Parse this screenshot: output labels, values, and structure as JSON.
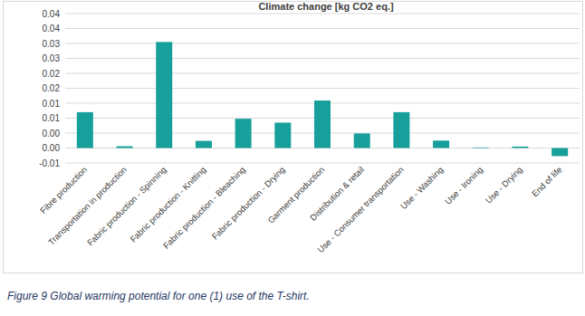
{
  "chart_data": {
    "type": "bar",
    "title": "Climate change [kg CO2 eq.]",
    "caption": "Figure 9 Global warming potential for one (1) use of the T-shirt.",
    "categories": [
      "Fibre production",
      "Transportation in production",
      "Fabric production - Spinning",
      "Fabric production - Knitting",
      "Fabric production - Bleaching",
      "Fabric production - Drying",
      "Garment production",
      "Distribution & retail",
      "Use - Consumer transportation",
      "Use - Washing",
      "Use - Ironing",
      "Use - Drying",
      "End of life"
    ],
    "values": [
      0.012,
      0.0006,
      0.0355,
      0.0024,
      0.0098,
      0.0085,
      0.0159,
      0.0049,
      0.012,
      0.0025,
      0.0002,
      0.0005,
      -0.0027
    ],
    "color": "#17a09b",
    "ylim": [
      -0.005,
      0.045
    ],
    "yticks": [
      {
        "value": -0.005,
        "label": "-0.01"
      },
      {
        "value": 0,
        "label": "0.00"
      },
      {
        "value": 0.005,
        "label": "0.00"
      },
      0.01,
      {
        "value": 0.015,
        "label": "0.01"
      },
      0.02,
      {
        "value": 0.025,
        "label": "0.02"
      },
      0.03,
      {
        "value": 0.035,
        "label": "0.03"
      },
      0.04,
      {
        "value": 0.045,
        "label": "0.04"
      }
    ],
    "grid": true
  }
}
